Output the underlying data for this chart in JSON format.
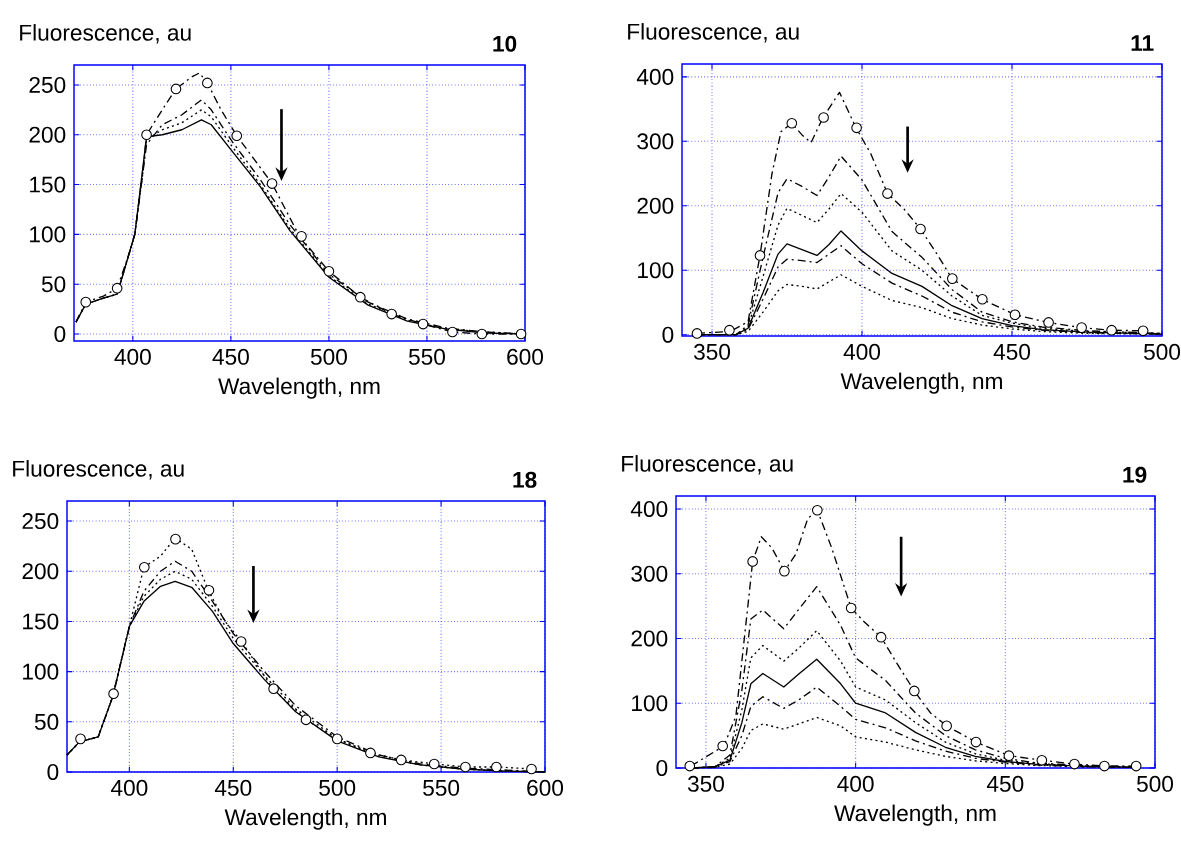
{
  "chart_data": [
    {
      "type": "line",
      "title": "10",
      "xlabel": "Wavelength, nm",
      "ylabel": "Fluorescence, au",
      "xlim": [
        370,
        600
      ],
      "ylim": [
        -7,
        270
      ],
      "xticks": [
        400,
        450,
        500,
        550,
        600
      ],
      "yticks": [
        0,
        50,
        100,
        150,
        200,
        250
      ],
      "grid": true,
      "series": [
        {
          "color": "#000000",
          "line_style": "dashed",
          "x": [
            371,
            376,
            385,
            392,
            398,
            401,
            405,
            407,
            415,
            422,
            430,
            434,
            438,
            445,
            453,
            462,
            471,
            485,
            500,
            516,
            532,
            548,
            563,
            578,
            598
          ],
          "values": [
            12,
            32,
            38,
            46,
            80,
            100,
            160,
            200,
            225,
            246,
            258,
            262,
            252,
            225,
            199,
            175,
            151,
            98,
            63,
            37,
            20,
            10,
            2,
            0,
            0
          ]
        },
        {
          "type": "scatter",
          "marker": "circle",
          "color": "#000000",
          "x": [
            376,
            392,
            407,
            422,
            438,
            453,
            471,
            486,
            500,
            516,
            532,
            548,
            563,
            578,
            598
          ],
          "values": [
            32,
            46,
            200,
            246,
            252,
            199,
            151,
            98,
            63,
            37,
            20,
            10,
            2,
            0,
            0
          ]
        },
        {
          "color": "#000000",
          "line_style": "dashed",
          "x": [
            371,
            376,
            385,
            392,
            401,
            407,
            415,
            425,
            435,
            440,
            450,
            465,
            480,
            500,
            520,
            540,
            560,
            580,
            600
          ],
          "values": [
            12,
            30,
            36,
            40,
            100,
            190,
            210,
            220,
            235,
            225,
            195,
            155,
            110,
            60,
            32,
            15,
            6,
            2,
            0
          ]
        },
        {
          "color": "#000000",
          "line_style": "dotted",
          "x": [
            371,
            376,
            385,
            392,
            401,
            407,
            415,
            425,
            435,
            440,
            450,
            465,
            480,
            500,
            520,
            540,
            560,
            580,
            600
          ],
          "values": [
            12,
            30,
            36,
            40,
            100,
            195,
            205,
            212,
            225,
            218,
            190,
            150,
            106,
            58,
            30,
            14,
            5,
            2,
            0
          ]
        },
        {
          "color": "#000000",
          "line_style": "solid",
          "x": [
            371,
            376,
            385,
            392,
            401,
            407,
            415,
            425,
            435,
            440,
            450,
            465,
            480,
            500,
            520,
            540,
            560,
            580,
            600
          ],
          "values": [
            12,
            30,
            36,
            40,
            100,
            198,
            200,
            205,
            215,
            210,
            185,
            148,
            104,
            57,
            29,
            13,
            5,
            1,
            0
          ]
        }
      ]
    },
    {
      "type": "line",
      "title": "11",
      "xlabel": "Wavelength, nm",
      "ylabel": "Fluorescence, au",
      "xlim": [
        340,
        500
      ],
      "ylim": [
        -2,
        420
      ],
      "xticks": [
        350,
        400,
        450,
        500
      ],
      "yticks": [
        0,
        100,
        200,
        300,
        400
      ],
      "grid": true,
      "series": [
        {
          "color": "#000000",
          "line_style": "dashed",
          "x": [
            345,
            356,
            362,
            366,
            370,
            373,
            376.6,
            380,
            383,
            387,
            392.5,
            398,
            403,
            408.5,
            414,
            419.5,
            425,
            430,
            440,
            451,
            462,
            473,
            483,
            494
          ],
          "values": [
            2,
            5,
            20,
            123,
            250,
            315,
            328,
            310,
            298,
            337,
            376,
            321,
            280,
            219,
            195,
            164,
            125,
            87,
            55,
            31,
            19,
            11,
            7,
            6
          ]
        },
        {
          "type": "scatter",
          "marker": "circle",
          "color": "#000000",
          "x": [
            345,
            355.8,
            366,
            376.6,
            387.2,
            398.2,
            408.5,
            419.5,
            430.1,
            440.1,
            451,
            462.2,
            473.2,
            483.2,
            493.7
          ],
          "values": [
            2,
            7,
            123,
            328,
            337,
            321,
            219,
            164,
            87,
            55,
            31,
            19,
            11,
            7,
            6
          ]
        },
        {
          "color": "#000000",
          "line_style": "dashed",
          "x": [
            345,
            358,
            362,
            367,
            372,
            375,
            380,
            385,
            389,
            393,
            400,
            410,
            420,
            430,
            440,
            450,
            460,
            475,
            500
          ],
          "values": [
            0,
            0,
            15,
            120,
            220,
            242,
            230,
            216,
            245,
            277,
            240,
            160,
            120,
            70,
            35,
            20,
            12,
            6,
            2
          ]
        },
        {
          "color": "#000000",
          "line_style": "dotted",
          "x": [
            345,
            358,
            362,
            367,
            372,
            375,
            380,
            385,
            389,
            393,
            400,
            410,
            420,
            430,
            440,
            450,
            460,
            475,
            500
          ],
          "values": [
            0,
            0,
            12,
            90,
            170,
            196,
            185,
            174,
            195,
            219,
            190,
            130,
            100,
            60,
            30,
            18,
            10,
            5,
            2
          ]
        },
        {
          "color": "#000000",
          "line_style": "solid",
          "x": [
            345,
            358,
            362,
            367,
            372,
            375,
            380,
            385,
            389,
            393,
            400,
            410,
            420,
            430,
            440,
            450,
            460,
            475,
            500
          ],
          "values": [
            0,
            0,
            10,
            65,
            125,
            141,
            132,
            123,
            140,
            161,
            130,
            95,
            75,
            45,
            25,
            14,
            8,
            4,
            1
          ]
        },
        {
          "color": "#000000",
          "line_style": "dashed",
          "x": [
            345,
            358,
            362,
            367,
            372,
            375,
            380,
            385,
            389,
            393,
            400,
            410,
            420,
            430,
            440,
            450,
            460,
            475,
            500
          ],
          "values": [
            0,
            0,
            8,
            55,
            105,
            117,
            115,
            112,
            125,
            138,
            110,
            80,
            60,
            35,
            20,
            12,
            7,
            3,
            1
          ]
        },
        {
          "color": "#000000",
          "line_style": "dotted",
          "x": [
            345,
            358,
            362,
            367,
            372,
            375,
            380,
            385,
            389,
            393,
            400,
            410,
            420,
            430,
            440,
            450,
            460,
            475,
            500
          ],
          "values": [
            0,
            0,
            5,
            35,
            68,
            78,
            75,
            71,
            82,
            93,
            75,
            53,
            42,
            25,
            15,
            9,
            5,
            2,
            1
          ]
        }
      ]
    },
    {
      "type": "line",
      "title": "18",
      "xlabel": "Wavelength, nm",
      "ylabel": "Fluorescence, au",
      "xlim": [
        370,
        600
      ],
      "ylim": [
        0,
        270
      ],
      "xticks": [
        400,
        450,
        500,
        550,
        600
      ],
      "yticks": [
        0,
        50,
        100,
        150,
        200,
        250
      ],
      "grid": true,
      "series": [
        {
          "color": "#000000",
          "line_style": "dotted",
          "x": [
            370,
            376,
            385,
            392,
            396,
            400,
            407,
            415,
            422,
            430,
            438,
            446,
            454,
            469,
            485,
            500,
            516,
            531,
            547,
            562,
            577,
            594
          ],
          "values": [
            17,
            30,
            35,
            75,
            110,
            145,
            204,
            215,
            233,
            222,
            181,
            150,
            130,
            83,
            52,
            33,
            19,
            12,
            8,
            5,
            5,
            3
          ]
        },
        {
          "type": "scatter",
          "marker": "circle",
          "color": "#000000",
          "x": [
            376.5,
            392.4,
            407.2,
            422.2,
            438.3,
            453.8,
            469.4,
            485,
            500,
            516,
            530.8,
            546.7,
            561.7,
            576.6,
            593.5
          ],
          "values": [
            33,
            78,
            204,
            232,
            181,
            130,
            83,
            52,
            33,
            19,
            12,
            8,
            5,
            5,
            3
          ]
        },
        {
          "color": "#000000",
          "line_style": "dashed",
          "x": [
            370,
            376,
            385,
            392,
            396,
            400,
            407,
            415,
            422,
            430,
            440,
            450,
            465,
            480,
            500,
            520,
            540,
            560,
            580,
            600
          ],
          "values": [
            17,
            30,
            35,
            75,
            110,
            145,
            180,
            200,
            210,
            200,
            170,
            138,
            100,
            66,
            35,
            17,
            8,
            4,
            2,
            0
          ]
        },
        {
          "color": "#000000",
          "line_style": "dotted",
          "x": [
            370,
            376,
            385,
            392,
            396,
            400,
            407,
            415,
            422,
            430,
            440,
            450,
            465,
            480,
            500,
            520,
            540,
            560,
            580,
            600
          ],
          "values": [
            17,
            30,
            35,
            75,
            110,
            145,
            175,
            192,
            200,
            192,
            165,
            133,
            96,
            63,
            33,
            16,
            7,
            3,
            1,
            0
          ]
        },
        {
          "color": "#000000",
          "line_style": "solid",
          "x": [
            370,
            376,
            385,
            392,
            396,
            400,
            407,
            415,
            422,
            430,
            440,
            450,
            465,
            480,
            500,
            520,
            540,
            560,
            580,
            600
          ],
          "values": [
            17,
            30,
            35,
            75,
            110,
            145,
            170,
            185,
            190,
            184,
            160,
            128,
            92,
            60,
            31,
            15,
            7,
            3,
            1,
            0
          ]
        }
      ]
    },
    {
      "type": "line",
      "title": "19",
      "xlabel": "Wavelength, nm",
      "ylabel": "Fluorescence, au",
      "xlim": [
        340,
        500
      ],
      "ylim": [
        0,
        420
      ],
      "xticks": [
        350,
        400,
        450,
        500
      ],
      "yticks": [
        0,
        100,
        200,
        300,
        400
      ],
      "grid": true,
      "series": [
        {
          "color": "#000000",
          "line_style": "dashed",
          "x": [
            345,
            356,
            360,
            364,
            365.6,
            368.5,
            372,
            376.2,
            380,
            384,
            387.2,
            392,
            398.5,
            403,
            408.5,
            414,
            419.6,
            425,
            430.4,
            440.2,
            451.2,
            462.2,
            473.1,
            483.1,
            493.7
          ],
          "values": [
            3,
            34,
            80,
            250,
            319,
            357,
            340,
            304,
            330,
            385,
            398,
            340,
            247,
            225,
            202,
            160,
            119,
            85,
            65,
            40,
            19,
            12,
            6,
            3,
            3
          ]
        },
        {
          "type": "scatter",
          "marker": "circle",
          "color": "#000000",
          "x": [
            344.6,
            355.6,
            365.6,
            376.2,
            387.2,
            398.5,
            408.5,
            419.6,
            430.4,
            440.2,
            451.2,
            462.2,
            473.1,
            483.1,
            493.7
          ],
          "values": [
            3,
            34,
            319,
            304,
            398,
            247,
            202,
            119,
            65,
            40,
            19,
            12,
            6,
            3,
            3
          ]
        },
        {
          "color": "#000000",
          "line_style": "dashed",
          "x": [
            345,
            353,
            358,
            362,
            365,
            369,
            376,
            381,
            387,
            395,
            400,
            410,
            420,
            430,
            440,
            450,
            460,
            475,
            495
          ],
          "values": [
            0,
            2,
            20,
            120,
            230,
            244,
            215,
            245,
            280,
            220,
            170,
            135,
            85,
            50,
            28,
            15,
            8,
            4,
            2
          ]
        },
        {
          "color": "#000000",
          "line_style": "dotted",
          "x": [
            345,
            353,
            358,
            362,
            365,
            369,
            376,
            381,
            387,
            395,
            400,
            410,
            420,
            430,
            440,
            450,
            460,
            475,
            495
          ],
          "values": [
            0,
            2,
            15,
            90,
            170,
            189,
            165,
            185,
            212,
            165,
            125,
            105,
            70,
            40,
            22,
            12,
            7,
            3,
            1
          ]
        },
        {
          "color": "#000000",
          "line_style": "solid",
          "x": [
            345,
            353,
            358,
            362,
            365,
            369,
            376,
            381,
            387,
            395,
            400,
            410,
            420,
            430,
            440,
            450,
            460,
            475,
            495
          ],
          "values": [
            0,
            2,
            12,
            70,
            130,
            146,
            125,
            145,
            168,
            130,
            100,
            85,
            55,
            32,
            18,
            10,
            6,
            3,
            1
          ]
        },
        {
          "color": "#000000",
          "line_style": "dashed",
          "x": [
            345,
            353,
            358,
            362,
            365,
            369,
            376,
            381,
            387,
            395,
            400,
            410,
            420,
            430,
            440,
            450,
            460,
            475,
            495
          ],
          "values": [
            0,
            1,
            10,
            50,
            95,
            110,
            92,
            105,
            125,
            95,
            75,
            62,
            42,
            26,
            15,
            9,
            5,
            2,
            1
          ]
        },
        {
          "color": "#000000",
          "line_style": "dotted",
          "x": [
            345,
            353,
            358,
            362,
            365,
            369,
            376,
            381,
            387,
            395,
            400,
            410,
            420,
            430,
            440,
            450,
            460,
            475,
            495
          ],
          "values": [
            0,
            1,
            6,
            30,
            58,
            68,
            60,
            68,
            78,
            65,
            48,
            40,
            28,
            18,
            11,
            7,
            4,
            2,
            1
          ]
        }
      ]
    }
  ]
}
